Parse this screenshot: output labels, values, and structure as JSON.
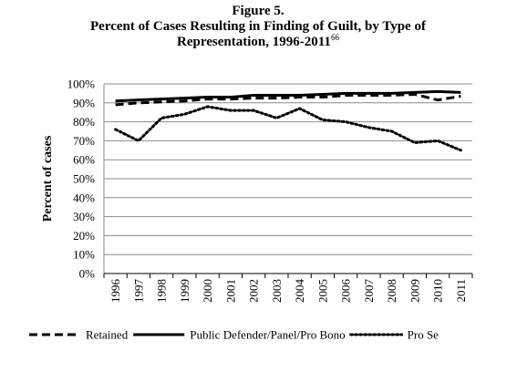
{
  "chart_data": {
    "type": "line",
    "title": "Figure 5.",
    "subtitle": "Percent of Cases Resulting in Finding of Guilt, by Type of Representation, 1996-2011",
    "title_footnote": "66",
    "y_label": "Percent of cases",
    "categories": [
      "1996",
      "1997",
      "1998",
      "1999",
      "2000",
      "2001",
      "2002",
      "2003",
      "2004",
      "2005",
      "2006",
      "2007",
      "2008",
      "2009",
      "2010",
      "2011"
    ],
    "series": [
      {
        "name": "Retained",
        "color": "#000000",
        "dash": "dashed",
        "values": [
          89,
          90,
          90.5,
          91,
          92,
          92,
          92.5,
          92.5,
          93,
          93,
          94,
          94,
          94,
          94.5,
          91.5,
          93.5
        ]
      },
      {
        "name": "Public Defender/Panel/Pro Bono",
        "color": "#000000",
        "dash": "solid",
        "values": [
          91,
          91.5,
          92,
          92.5,
          93,
          93,
          94,
          94,
          94,
          94.5,
          95,
          95,
          95,
          95.5,
          96,
          95.5
        ]
      },
      {
        "name": "Pro Se",
        "color": "#000000",
        "dash": "dotted",
        "values": [
          76,
          70,
          82,
          84,
          88,
          86,
          86,
          82,
          87,
          81,
          80,
          77,
          75,
          69,
          70,
          65
        ]
      }
    ],
    "ylim": [
      0,
      100
    ],
    "yticks": [
      {
        "value": 0,
        "label": "0%"
      },
      {
        "value": 10,
        "label": "10%"
      },
      {
        "value": 20,
        "label": "20%"
      },
      {
        "value": 30,
        "label": "30%"
      },
      {
        "value": 40,
        "label": "40%"
      },
      {
        "value": 50,
        "label": "50%"
      },
      {
        "value": 60,
        "label": "60%"
      },
      {
        "value": 70,
        "label": "70%"
      },
      {
        "value": 80,
        "label": "80%"
      },
      {
        "value": 90,
        "label": "90%"
      },
      {
        "value": 100,
        "label": "100%"
      }
    ],
    "grid": true,
    "legend": "bottom"
  }
}
